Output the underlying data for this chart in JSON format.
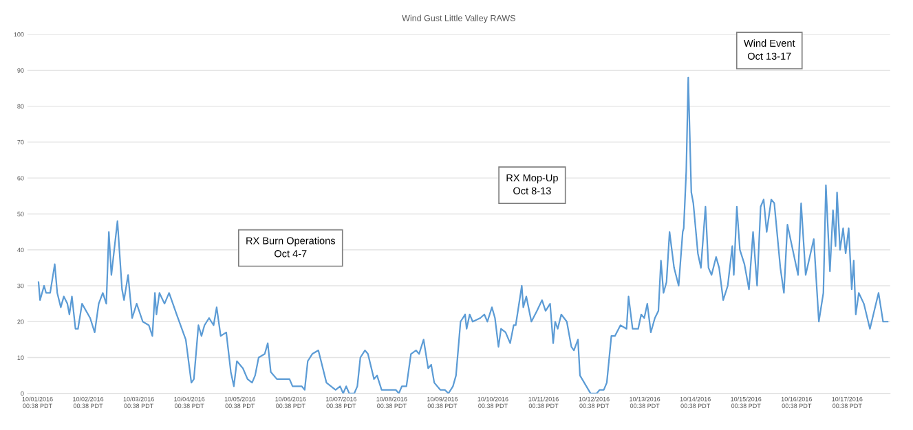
{
  "chart_data": {
    "type": "line",
    "title": "Wind Gust Little Valley RAWS",
    "x": [
      "2016-10-01T01:07",
      "2016-10-01T01:50",
      "2016-10-01T03:45",
      "2016-10-01T04:43",
      "2016-10-01T06:38",
      "2016-10-01T08:48",
      "2016-10-01T10:00",
      "2016-10-01T11:40",
      "2016-10-01T13:07",
      "2016-10-01T14:48",
      "2016-10-01T15:45",
      "2016-10-01T16:57",
      "2016-10-01T18:38",
      "2016-10-01T19:50",
      "2016-10-01T21:45",
      "2016-10-02T01:36",
      "2016-10-02T03:45",
      "2016-10-02T05:40",
      "2016-10-02T07:36",
      "2016-10-02T09:16",
      "2016-10-02T10:28",
      "2016-10-02T11:40",
      "2016-10-02T14:33",
      "2016-10-02T16:43",
      "2016-10-02T17:40",
      "2016-10-02T19:36",
      "2016-10-02T21:31",
      "2016-10-02T23:40",
      "2016-10-03T02:33",
      "2016-10-03T05:26",
      "2016-10-03T07:07",
      "2016-10-03T08:19",
      "2016-10-03T09:02",
      "2016-10-03T10:28",
      "2016-10-03T12:52",
      "2016-10-03T15:02",
      "2016-10-03T18:38",
      "2016-10-03T22:57",
      "2016-10-04T01:36",
      "2016-10-04T02:48",
      "2016-10-04T04:57",
      "2016-10-04T06:24",
      "2016-10-04T07:50",
      "2016-10-04T10:00",
      "2016-10-04T12:09",
      "2016-10-04T13:36",
      "2016-10-04T15:31",
      "2016-10-04T18:09",
      "2016-10-04T20:19",
      "2016-10-04T21:45",
      "2016-10-04T23:12",
      "2016-10-05T00:38",
      "2016-10-05T02:04",
      "2016-10-05T04:14",
      "2016-10-05T06:24",
      "2016-10-05T07:50",
      "2016-10-05T09:31",
      "2016-10-05T12:24",
      "2016-10-05T13:50",
      "2016-10-05T15:16",
      "2016-10-05T18:09",
      "2016-10-06T00:09",
      "2016-10-06T01:36",
      "2016-10-06T05:55",
      "2016-10-06T07:21",
      "2016-10-06T08:48",
      "2016-10-06T10:57",
      "2016-10-06T13:50",
      "2016-10-06T17:40",
      "2016-10-06T19:50",
      "2016-10-06T22:00",
      "2016-10-07T00:09",
      "2016-10-07T01:36",
      "2016-10-07T03:02",
      "2016-10-07T04:28",
      "2016-10-07T06:52",
      "2016-10-07T08:19",
      "2016-10-07T09:45",
      "2016-10-07T11:55",
      "2016-10-07T13:21",
      "2016-10-07T16:14",
      "2016-10-07T17:40",
      "2016-10-07T19:50",
      "2016-10-08T02:33",
      "2016-10-08T04:00",
      "2016-10-08T05:26",
      "2016-10-08T07:36",
      "2016-10-08T09:45",
      "2016-10-08T12:09",
      "2016-10-08T13:36",
      "2016-10-08T15:45",
      "2016-10-08T17:55",
      "2016-10-08T19:21",
      "2016-10-08T20:48",
      "2016-10-08T23:40",
      "2016-10-09T01:50",
      "2016-10-09T03:31",
      "2016-10-09T05:40",
      "2016-10-09T07:07",
      "2016-10-09T09:16",
      "2016-10-09T11:26",
      "2016-10-09T12:09",
      "2016-10-09T13:36",
      "2016-10-09T15:02",
      "2016-10-09T18:38",
      "2016-10-09T20:33",
      "2016-10-09T22:00",
      "2016-10-10T00:09",
      "2016-10-10T01:36",
      "2016-10-10T03:16",
      "2016-10-10T04:28",
      "2016-10-10T06:38",
      "2016-10-10T08:48",
      "2016-10-10T10:28",
      "2016-10-10T11:26",
      "2016-10-10T14:19",
      "2016-10-10T15:02",
      "2016-10-10T16:28",
      "2016-10-10T18:52",
      "2016-10-10T21:31",
      "2016-10-10T23:55",
      "2016-10-11T01:36",
      "2016-10-11T03:45",
      "2016-10-11T05:12",
      "2016-10-11T06:09",
      "2016-10-11T07:21",
      "2016-10-11T09:02",
      "2016-10-11T11:40",
      "2016-10-11T13:50",
      "2016-10-11T15:02",
      "2016-10-11T16:57",
      "2016-10-11T17:55",
      "2016-10-11T22:57",
      "2016-10-12T01:50",
      "2016-10-12T03:16",
      "2016-10-12T05:12",
      "2016-10-12T06:38",
      "2016-10-12T08:48",
      "2016-10-12T10:28",
      "2016-10-12T13:07",
      "2016-10-12T16:00",
      "2016-10-12T16:57",
      "2016-10-12T18:52",
      "2016-10-12T21:31",
      "2016-10-12T22:57",
      "2016-10-13T00:24",
      "2016-10-13T01:50",
      "2016-10-13T03:31",
      "2016-10-13T05:26",
      "2016-10-13T07:07",
      "2016-10-13T08:19",
      "2016-10-13T09:31",
      "2016-10-13T10:57",
      "2016-10-13T12:24",
      "2016-10-13T14:33",
      "2016-10-13T16:43",
      "2016-10-13T18:38",
      "2016-10-13T19:07",
      "2016-10-13T20:19",
      "2016-10-13T21:16",
      "2016-10-13T22:43",
      "2016-10-13T23:40",
      "2016-10-14T01:50",
      "2016-10-14T03:16",
      "2016-10-14T05:26",
      "2016-10-14T06:52",
      "2016-10-14T08:19",
      "2016-10-14T10:28",
      "2016-10-14T11:55",
      "2016-10-14T13:50",
      "2016-10-14T16:00",
      "2016-10-14T18:09",
      "2016-10-14T18:52",
      "2016-10-14T20:19",
      "2016-10-14T21:45",
      "2016-10-14T23:55",
      "2016-10-15T02:04",
      "2016-10-15T04:00",
      "2016-10-15T05:55",
      "2016-10-15T07:36",
      "2016-10-15T09:02",
      "2016-10-15T10:28",
      "2016-10-15T12:38",
      "2016-10-15T14:04",
      "2016-10-15T16:57",
      "2016-10-15T18:38",
      "2016-10-15T20:19",
      "2016-10-15T22:28",
      "2016-10-16T01:21",
      "2016-10-16T02:48",
      "2016-10-16T04:57",
      "2016-10-16T08:48",
      "2016-10-16T11:12",
      "2016-10-16T13:21",
      "2016-10-16T14:33",
      "2016-10-16T16:28",
      "2016-10-16T17:55",
      "2016-10-16T19:07",
      "2016-10-16T19:50",
      "2016-10-16T21:16",
      "2016-10-16T22:43",
      "2016-10-16T23:55",
      "2016-10-17T01:21",
      "2016-10-17T02:48",
      "2016-10-17T03:45",
      "2016-10-17T04:43",
      "2016-10-17T06:09",
      "2016-10-17T08:33",
      "2016-10-17T11:26",
      "2016-10-17T15:31",
      "2016-10-17T17:40",
      "2016-10-17T19:50"
    ],
    "series": [
      {
        "color": "#5b9bd5",
        "values": [
          31,
          26,
          30,
          28,
          28,
          36,
          28,
          24,
          27,
          25,
          22,
          27,
          18,
          18,
          25,
          21,
          17,
          25,
          28,
          25,
          45,
          33,
          48,
          29,
          26,
          33,
          21,
          25,
          20,
          19,
          16,
          28,
          22,
          28,
          25,
          28,
          22,
          15,
          3,
          4,
          19,
          16,
          19,
          21,
          19,
          24,
          16,
          17,
          6,
          2,
          9,
          8,
          7,
          4,
          3,
          5,
          10,
          11,
          14,
          6,
          4,
          4,
          2,
          2,
          1,
          9,
          11,
          12,
          3,
          2,
          1,
          2,
          0,
          2,
          0,
          0,
          2,
          10,
          12,
          11,
          4,
          5,
          1,
          1,
          0,
          2,
          2,
          11,
          12,
          11,
          15,
          7,
          8,
          3,
          1,
          1,
          0,
          2,
          5,
          20,
          22,
          18,
          22,
          20,
          21,
          22,
          20,
          24,
          21,
          13,
          18,
          17,
          14,
          19,
          19,
          30,
          24,
          27,
          20,
          23,
          26,
          23,
          25,
          14,
          20,
          18,
          22,
          20,
          13,
          12,
          15,
          5,
          0,
          0,
          1,
          1,
          3,
          16,
          16,
          19,
          18,
          27,
          18,
          18,
          22,
          21,
          25,
          17,
          21,
          23,
          37,
          28,
          31,
          45,
          35,
          30,
          45,
          46,
          62,
          88,
          56,
          53,
          39,
          35,
          52,
          35,
          33,
          38,
          35,
          26,
          30,
          41,
          33,
          52,
          40,
          36,
          29,
          45,
          30,
          52,
          54,
          45,
          54,
          53,
          35,
          28,
          47,
          41,
          33,
          53,
          33,
          43,
          20,
          28,
          58,
          34,
          51,
          41,
          56,
          40,
          46,
          39,
          46,
          29,
          37,
          22,
          28,
          25,
          18,
          28,
          20,
          20
        ]
      }
    ],
    "xlim": [
      "2016-09-30T19:50",
      "2016-10-17T21:02"
    ],
    "xticks": [
      {
        "value": "2016-10-01T00:38",
        "label": "10/01/2016\n00:38 PDT"
      },
      {
        "value": "2016-10-02T00:38",
        "label": "10/02/2016\n00:38 PDT"
      },
      {
        "value": "2016-10-03T00:38",
        "label": "10/03/2016\n00:38 PDT"
      },
      {
        "value": "2016-10-04T00:38",
        "label": "10/04/2016\n00:38 PDT"
      },
      {
        "value": "2016-10-05T00:38",
        "label": "10/05/2016\n00:38 PDT"
      },
      {
        "value": "2016-10-06T00:38",
        "label": "10/06/2016\n00:38 PDT"
      },
      {
        "value": "2016-10-07T00:38",
        "label": "10/07/2016\n00:38 PDT"
      },
      {
        "value": "2016-10-08T00:38",
        "label": "10/08/2016\n00:38 PDT"
      },
      {
        "value": "2016-10-09T00:38",
        "label": "10/09/2016\n00:38 PDT"
      },
      {
        "value": "2016-10-10T00:38",
        "label": "10/10/2016\n00:38 PDT"
      },
      {
        "value": "2016-10-11T00:38",
        "label": "10/11/2016\n00:38 PDT"
      },
      {
        "value": "2016-10-12T00:38",
        "label": "10/12/2016\n00:38 PDT"
      },
      {
        "value": "2016-10-13T00:38",
        "label": "10/13/2016\n00:38 PDT"
      },
      {
        "value": "2016-10-14T00:38",
        "label": "10/14/2016\n00:38 PDT"
      },
      {
        "value": "2016-10-15T00:38",
        "label": "10/15/2016\n00:38 PDT"
      },
      {
        "value": "2016-10-16T00:38",
        "label": "10/16/2016\n00:38 PDT"
      },
      {
        "value": "2016-10-17T00:38",
        "label": "10/17/2016\n00:38 PDT"
      }
    ],
    "ylim": [
      0,
      100
    ],
    "yticks": [
      0,
      10,
      20,
      30,
      40,
      50,
      60,
      70,
      80,
      90,
      100
    ],
    "grid": "y",
    "annotations": [
      "RX Burn Operations\nOct 4-7",
      "RX Mop-Up\nOct 8-13",
      "Wind Event\nOct 13-17"
    ]
  }
}
